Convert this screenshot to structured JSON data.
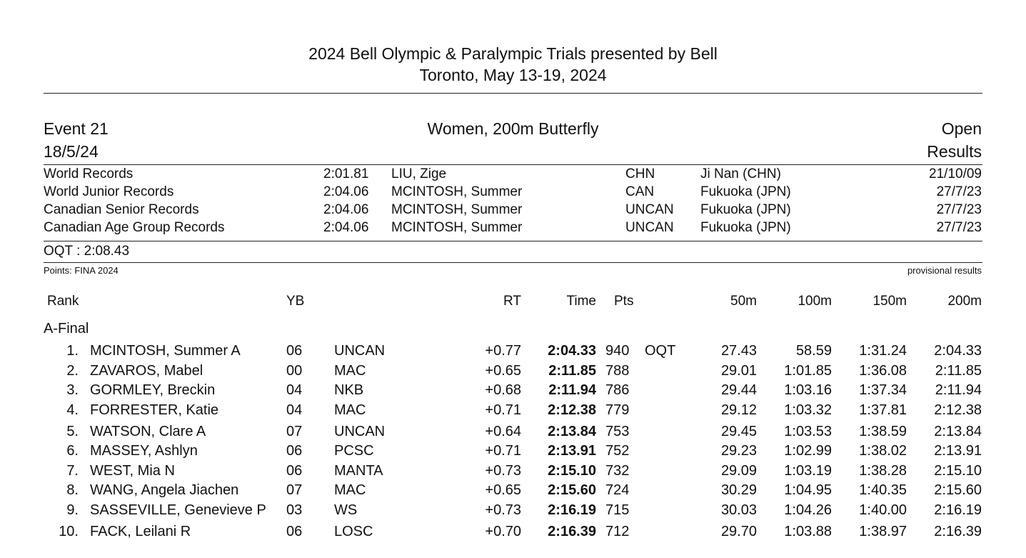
{
  "header": {
    "title": "2024 Bell Olympic & Paralympic Trials presented by Bell",
    "subtitle": "Toronto, May 13-19, 2024"
  },
  "event": {
    "number": "Event 21",
    "date": "18/5/24",
    "name": "Women, 200m Butterfly",
    "category": "Open",
    "status": "Results"
  },
  "records": [
    {
      "label": "World Records",
      "time": "2:01.81",
      "name": "LIU, Zige",
      "code": "CHN",
      "place": "Ji Nan (CHN)",
      "date": "21/10/09"
    },
    {
      "label": "World Junior Records",
      "time": "2:04.06",
      "name": "MCINTOSH, Summer",
      "code": "CAN",
      "place": "Fukuoka (JPN)",
      "date": "27/7/23"
    },
    {
      "label": "Canadian Senior Records",
      "time": "2:04.06",
      "name": "MCINTOSH, Summer",
      "code": "UNCAN",
      "place": "Fukuoka (JPN)",
      "date": "27/7/23"
    },
    {
      "label": "Canadian Age Group Records",
      "time": "2:04.06",
      "name": "MCINTOSH, Summer",
      "code": "UNCAN",
      "place": "Fukuoka (JPN)",
      "date": "27/7/23"
    }
  ],
  "oqt": "OQT : 2:08.43",
  "points_note": "Points: FINA 2024",
  "provisional": "provisional results",
  "columns": {
    "rank": "Rank",
    "yb": "YB",
    "rt": "RT",
    "time": "Time",
    "pts": "Pts",
    "s50": "50m",
    "s100": "100m",
    "s150": "150m",
    "s200": "200m"
  },
  "section": "A-Final",
  "results": [
    {
      "rank": "1.",
      "name": "MCINTOSH, Summer A",
      "yb": "06",
      "club": "UNCAN",
      "rt": "+0.77",
      "time": "2:04.33",
      "pts": "940",
      "q": "OQT",
      "s50": "27.43",
      "s100": "58.59",
      "s150": "1:31.24",
      "s200": "2:04.33"
    },
    {
      "rank": "2.",
      "name": "ZAVAROS, Mabel",
      "yb": "00",
      "club": "MAC",
      "rt": "+0.65",
      "time": "2:11.85",
      "pts": "788",
      "q": "",
      "s50": "29.01",
      "s100": "1:01.85",
      "s150": "1:36.08",
      "s200": "2:11.85"
    },
    {
      "rank": "3.",
      "name": "GORMLEY, Breckin",
      "yb": "04",
      "club": "NKB",
      "rt": "+0.68",
      "time": "2:11.94",
      "pts": "786",
      "q": "",
      "s50": "29.44",
      "s100": "1:03.16",
      "s150": "1:37.34",
      "s200": "2:11.94"
    },
    {
      "rank": "4.",
      "name": "FORRESTER, Katie",
      "yb": "04",
      "club": "MAC",
      "rt": "+0.71",
      "time": "2:12.38",
      "pts": "779",
      "q": "",
      "s50": "29.12",
      "s100": "1:03.32",
      "s150": "1:37.81",
      "s200": "2:12.38"
    },
    {
      "rank": "5.",
      "name": "WATSON, Clare A",
      "yb": "07",
      "club": "UNCAN",
      "rt": "+0.64",
      "time": "2:13.84",
      "pts": "753",
      "q": "",
      "s50": "29.45",
      "s100": "1:03.53",
      "s150": "1:38.59",
      "s200": "2:13.84"
    },
    {
      "rank": "6.",
      "name": "MASSEY, Ashlyn",
      "yb": "06",
      "club": "PCSC",
      "rt": "+0.71",
      "time": "2:13.91",
      "pts": "752",
      "q": "",
      "s50": "29.23",
      "s100": "1:02.99",
      "s150": "1:38.02",
      "s200": "2:13.91"
    },
    {
      "rank": "7.",
      "name": "WEST, Mia N",
      "yb": "06",
      "club": "MANTA",
      "rt": "+0.73",
      "time": "2:15.10",
      "pts": "732",
      "q": "",
      "s50": "29.09",
      "s100": "1:03.19",
      "s150": "1:38.28",
      "s200": "2:15.10"
    },
    {
      "rank": "8.",
      "name": "WANG, Angela Jiachen",
      "yb": "07",
      "club": "MAC",
      "rt": "+0.65",
      "time": "2:15.60",
      "pts": "724",
      "q": "",
      "s50": "30.29",
      "s100": "1:04.95",
      "s150": "1:40.35",
      "s200": "2:15.60"
    },
    {
      "rank": "9.",
      "name": "SASSEVILLE, Genevieve P",
      "yb": "03",
      "club": "WS",
      "rt": "+0.73",
      "time": "2:16.19",
      "pts": "715",
      "q": "",
      "s50": "30.03",
      "s100": "1:04.26",
      "s150": "1:40.00",
      "s200": "2:16.19"
    },
    {
      "rank": "10.",
      "name": "FACK, Leilani R",
      "yb": "06",
      "club": "LOSC",
      "rt": "+0.70",
      "time": "2:16.39",
      "pts": "712",
      "q": "",
      "s50": "29.70",
      "s100": "1:03.88",
      "s150": "1:38.97",
      "s200": "2:16.39"
    }
  ]
}
